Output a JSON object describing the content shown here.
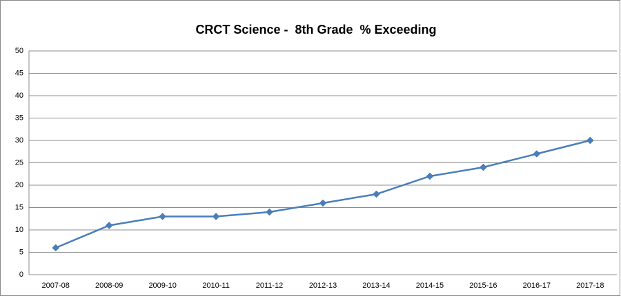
{
  "chart_data": {
    "type": "line",
    "title": "CRCT Science -  8th Grade  % Exceeding",
    "categories": [
      "2007-08",
      "2008-09",
      "2009-10",
      "2010-11",
      "2011-12",
      "2012-13",
      "2013-14",
      "2014-15",
      "2015-16",
      "2016-17",
      "2017-18"
    ],
    "series": [
      {
        "name": "% Exceeding",
        "color": "#4a7ebb",
        "values": [
          6,
          11,
          13,
          13,
          14,
          16,
          18,
          22,
          24,
          27,
          30
        ]
      }
    ],
    "ylim": [
      0,
      50
    ],
    "yticks": [
      0,
      5,
      10,
      15,
      20,
      25,
      30,
      35,
      40,
      45,
      50
    ],
    "grid": true
  }
}
